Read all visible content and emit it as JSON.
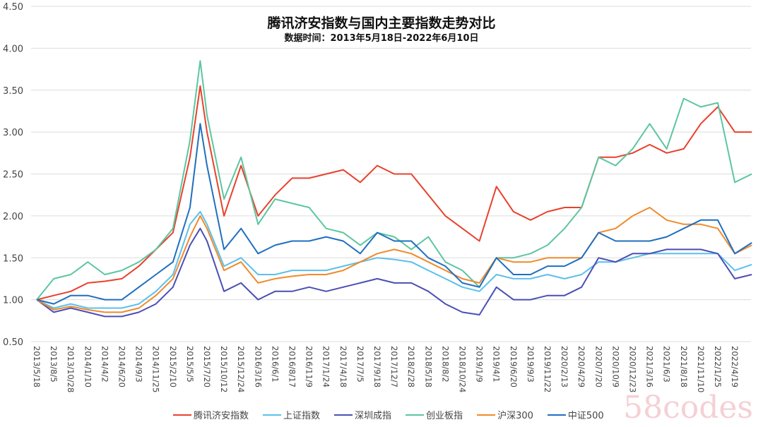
{
  "chart_data": {
    "type": "line",
    "title": "腾讯济安指数与国内主要指数走势对比",
    "subtitle": "数据时间：2013年5月18日-2022年6月10日",
    "xlabel": "",
    "ylabel": "",
    "ylim": [
      0.5,
      4.5
    ],
    "yticks": [
      "0.50",
      "1.00",
      "1.50",
      "2.00",
      "2.50",
      "3.00",
      "3.50",
      "4.00",
      "4.50"
    ],
    "grid": true,
    "legend_position": "bottom",
    "categories": [
      "2013/5/18",
      "2013/8/5",
      "2013/10/28",
      "2014/1/10",
      "2014/4/2",
      "2014/6/20",
      "2014/9/3",
      "2014/11/25",
      "2015/2/10",
      "2015/5/5",
      "2015/7/20",
      "2015/10/12",
      "2015/12/24",
      "2016/3/16",
      "2016/6/1",
      "2016/8/17",
      "2016/11/9",
      "2017/1/24",
      "2017/4/18",
      "2017/7/5",
      "2017/9/18",
      "2017/12/7",
      "2018/2/28",
      "2018/5/18",
      "2018/8/2",
      "2018/10/24",
      "2019/1/9",
      "2019/4/1",
      "2019/6/20",
      "2019/9/3",
      "2019/11/22",
      "2020/2/13",
      "2020/4/29",
      "2020/7/20",
      "2020/10/9",
      "2020/12/23",
      "2021/3/16",
      "2021/6/3",
      "2021/8/18",
      "2021/11/10",
      "2022/1/25",
      "2022/4/19"
    ],
    "x": [
      0,
      1,
      2,
      3,
      4,
      5,
      6,
      7,
      8,
      9,
      9.6,
      10,
      11,
      12,
      13,
      14,
      15,
      16,
      17,
      18,
      19,
      20,
      21,
      22,
      23,
      24,
      25,
      26,
      27,
      28,
      29,
      30,
      31,
      32,
      33,
      34,
      35,
      36,
      37,
      38,
      39,
      40,
      41,
      42
    ],
    "series": [
      {
        "name": "腾讯济安指数",
        "color": "#e8412c",
        "values": [
          1.0,
          1.05,
          1.1,
          1.2,
          1.22,
          1.25,
          1.4,
          1.6,
          1.8,
          2.7,
          3.55,
          3.0,
          2.0,
          2.6,
          2.0,
          2.25,
          2.45,
          2.45,
          2.5,
          2.55,
          2.4,
          2.6,
          2.5,
          2.5,
          2.25,
          2.0,
          1.85,
          1.7,
          2.35,
          2.05,
          1.95,
          2.05,
          2.1,
          2.1,
          2.7,
          2.7,
          2.75,
          2.85,
          2.75,
          2.8,
          3.1,
          3.3,
          3.0,
          3.0
        ]
      },
      {
        "name": "上证指数",
        "color": "#5bc0eb",
        "values": [
          1.0,
          0.9,
          0.95,
          0.9,
          0.9,
          0.9,
          0.95,
          1.1,
          1.3,
          1.9,
          2.05,
          1.9,
          1.4,
          1.5,
          1.3,
          1.3,
          1.35,
          1.35,
          1.35,
          1.4,
          1.45,
          1.5,
          1.48,
          1.45,
          1.35,
          1.25,
          1.15,
          1.1,
          1.3,
          1.25,
          1.25,
          1.3,
          1.25,
          1.3,
          1.45,
          1.45,
          1.5,
          1.55,
          1.55,
          1.55,
          1.55,
          1.55,
          1.35,
          1.42
        ]
      },
      {
        "name": "深圳成指",
        "color": "#4b4fb3",
        "values": [
          1.0,
          0.85,
          0.9,
          0.85,
          0.8,
          0.8,
          0.85,
          0.95,
          1.15,
          1.65,
          1.85,
          1.7,
          1.1,
          1.2,
          1.0,
          1.1,
          1.1,
          1.15,
          1.1,
          1.15,
          1.2,
          1.25,
          1.2,
          1.2,
          1.1,
          0.95,
          0.85,
          0.82,
          1.15,
          1.0,
          1.0,
          1.05,
          1.05,
          1.15,
          1.5,
          1.45,
          1.55,
          1.55,
          1.6,
          1.6,
          1.6,
          1.55,
          1.25,
          1.3
        ]
      },
      {
        "name": "创业板指",
        "color": "#5cc6a0",
        "values": [
          1.0,
          1.25,
          1.3,
          1.45,
          1.3,
          1.35,
          1.45,
          1.6,
          1.85,
          2.9,
          3.85,
          3.2,
          2.2,
          2.7,
          1.9,
          2.2,
          2.15,
          2.1,
          1.85,
          1.8,
          1.65,
          1.8,
          1.75,
          1.6,
          1.75,
          1.45,
          1.35,
          1.15,
          1.5,
          1.5,
          1.55,
          1.65,
          1.85,
          2.1,
          2.7,
          2.6,
          2.8,
          3.1,
          2.8,
          3.4,
          3.3,
          3.35,
          2.4,
          2.5
        ]
      },
      {
        "name": "沪深300",
        "color": "#f08a2c",
        "values": [
          1.0,
          0.88,
          0.92,
          0.88,
          0.85,
          0.85,
          0.9,
          1.05,
          1.25,
          1.75,
          2.0,
          1.85,
          1.35,
          1.45,
          1.2,
          1.25,
          1.28,
          1.3,
          1.3,
          1.35,
          1.45,
          1.55,
          1.6,
          1.55,
          1.45,
          1.35,
          1.25,
          1.2,
          1.5,
          1.45,
          1.45,
          1.5,
          1.5,
          1.5,
          1.8,
          1.85,
          2.0,
          2.1,
          1.95,
          1.9,
          1.9,
          1.85,
          1.55,
          1.65
        ]
      },
      {
        "name": "中证500",
        "color": "#1f6fc0",
        "values": [
          1.0,
          0.95,
          1.05,
          1.05,
          1.0,
          1.0,
          1.15,
          1.3,
          1.45,
          2.1,
          3.1,
          2.6,
          1.6,
          1.85,
          1.55,
          1.65,
          1.7,
          1.7,
          1.75,
          1.7,
          1.55,
          1.8,
          1.7,
          1.7,
          1.5,
          1.4,
          1.2,
          1.15,
          1.5,
          1.3,
          1.3,
          1.4,
          1.4,
          1.5,
          1.8,
          1.7,
          1.7,
          1.7,
          1.75,
          1.85,
          1.95,
          1.95,
          1.55,
          1.68
        ]
      }
    ]
  },
  "watermark": "58codes"
}
